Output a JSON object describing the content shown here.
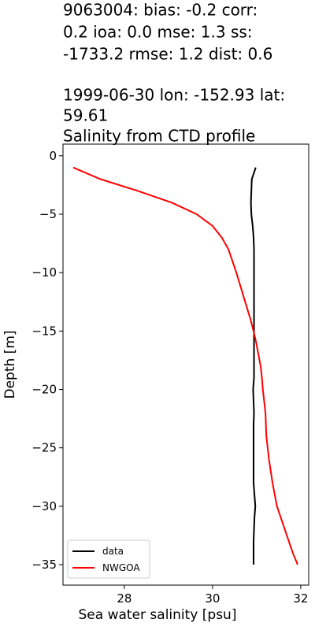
{
  "chart_data": {
    "type": "line",
    "title_lines": [
      "9063004: bias: -0.2  corr:",
      "0.2  ioa: 0.0  mse: 1.3  ss:",
      "-1733.2  rmse: 1.2  dist: 0.6",
      "1999-06-30 lon: -152.93 lat:",
      "59.61",
      "Salinity from CTD profile"
    ],
    "xlabel": "Sea water salinity [psu]",
    "ylabel": "Depth [m]",
    "xlim": [
      26.61,
      32.18
    ],
    "xticks": [
      28,
      30,
      32
    ],
    "ylim": [
      -36.75,
      1.0
    ],
    "yticks": [
      0,
      -5,
      -10,
      -15,
      -20,
      -25,
      -30,
      -35
    ],
    "legend": "lower left",
    "series": [
      {
        "name": "data",
        "color": "#000000",
        "x": [
          30.98,
          30.89,
          30.88,
          30.87,
          30.88,
          30.91,
          30.93,
          30.94,
          30.94,
          30.94,
          30.94,
          30.94,
          30.94,
          30.94,
          30.94,
          30.94,
          30.94,
          30.94,
          30.94,
          30.92,
          30.93,
          30.94,
          30.93,
          30.93,
          30.93,
          30.93,
          30.93,
          30.93,
          30.95,
          30.97,
          30.95,
          30.94,
          30.93,
          30.93,
          30.93
        ],
        "values": [
          -1,
          -2,
          -3,
          -4,
          -5,
          -6,
          -7,
          -8,
          -9,
          -10,
          -11,
          -12,
          -13,
          -14,
          -15,
          -16,
          -17,
          -18,
          -19,
          -20,
          -21,
          -22,
          -23,
          -24,
          -25,
          -26,
          -27,
          -28,
          -29,
          -30,
          -31,
          -32,
          -33,
          -34,
          -35
        ]
      },
      {
        "name": "NWGOA",
        "color": "#ff0000",
        "x": [
          26.84,
          27.46,
          28.3,
          29.07,
          29.64,
          30.0,
          30.21,
          30.36,
          30.45,
          30.54,
          30.62,
          30.7,
          30.78,
          30.86,
          30.93,
          30.99,
          31.04,
          31.09,
          31.12,
          31.14,
          31.17,
          31.2,
          31.21,
          31.22,
          31.25,
          31.28,
          31.32,
          31.36,
          31.41,
          31.46,
          31.55,
          31.64,
          31.73,
          31.82,
          31.93
        ],
        "values": [
          -1,
          -2,
          -3,
          -4,
          -5,
          -6,
          -7,
          -8,
          -9,
          -10,
          -11,
          -12,
          -13,
          -14,
          -15,
          -16,
          -17,
          -18,
          -19,
          -20,
          -21,
          -22,
          -23,
          -24,
          -25,
          -26,
          -27,
          -28,
          -29,
          -30,
          -31,
          -32,
          -33,
          -34,
          -35
        ]
      }
    ]
  }
}
